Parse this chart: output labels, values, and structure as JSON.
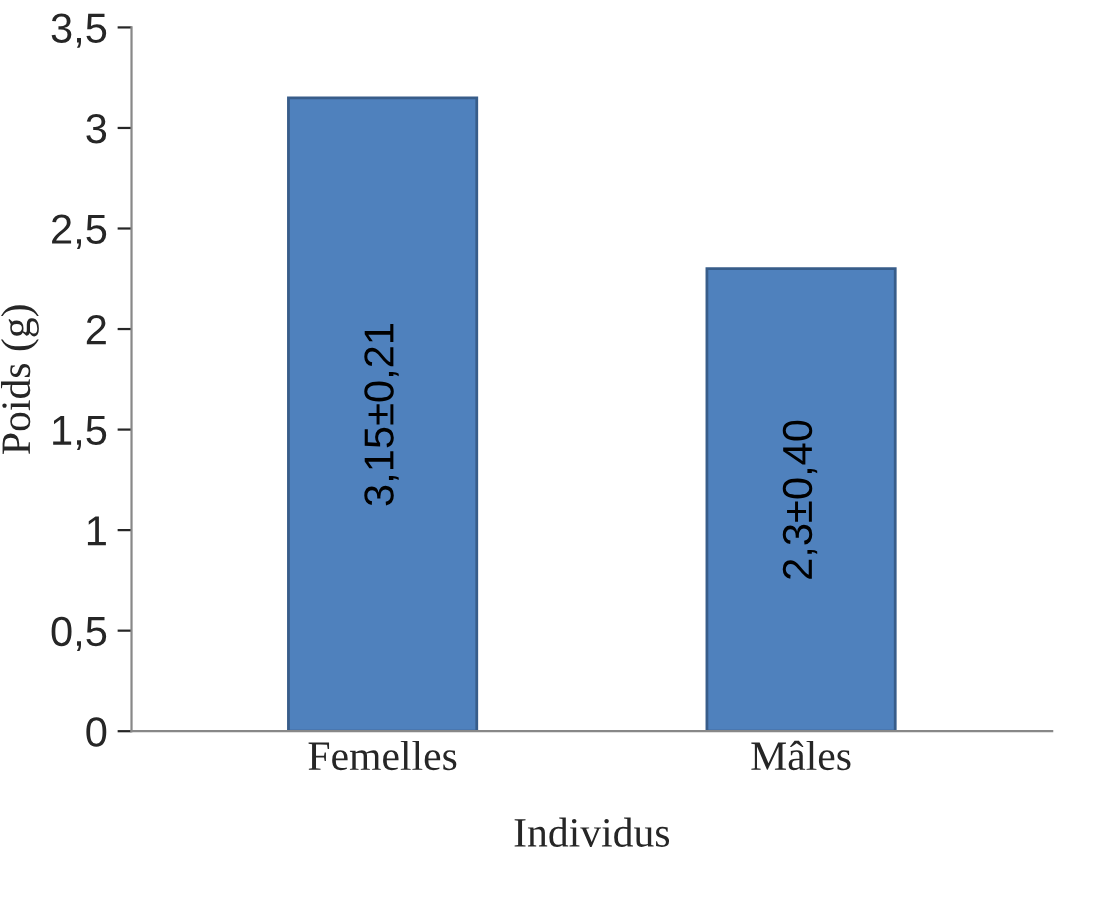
{
  "chart_data": {
    "type": "bar",
    "xlabel": "Individus",
    "ylabel": "Poids (g)",
    "categories": [
      "Femelles",
      "Mâles"
    ],
    "values": [
      3.15,
      2.3
    ],
    "value_labels": [
      "3,15±0,21",
      "2,3±0,40"
    ],
    "color": "#4f81bd",
    "ylim": [
      0,
      3.5
    ],
    "yticks": [
      0,
      {
        "value": 0.5,
        "label": "0,5"
      },
      1,
      {
        "value": 1.5,
        "label": "1,5"
      },
      2,
      {
        "value": 2.5,
        "label": "2,5"
      },
      3,
      {
        "value": 3.5,
        "label": "3,5"
      }
    ],
    "grid": false
  }
}
